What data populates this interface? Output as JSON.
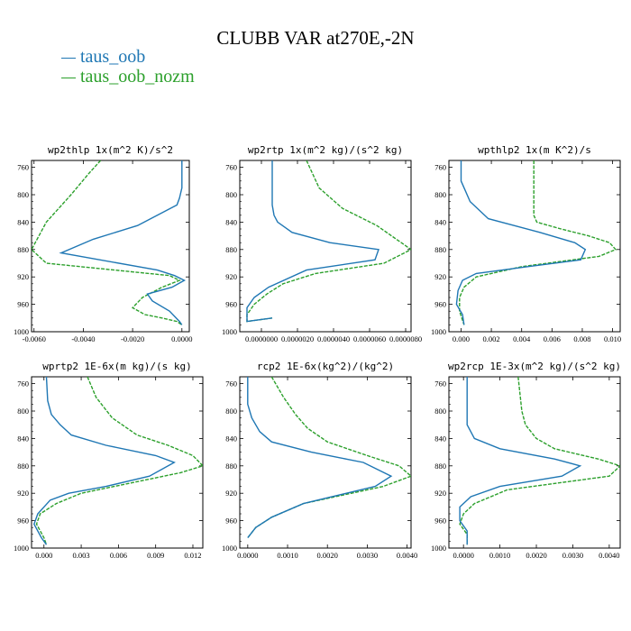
{
  "title": "CLUBB VAR at270E,-2N",
  "legend": [
    {
      "name": "taus_oob",
      "color": "#1f77b4"
    },
    {
      "name": "taus_oob_nozm",
      "color": "#2ca02c"
    }
  ],
  "chart_data": [
    {
      "type": "line",
      "title": "wp2thlp  1x(m^2 K)/s^2",
      "xlim": [
        -0.0061,
        0.0003
      ],
      "ylim": [
        1000,
        750
      ],
      "y_inverted": true,
      "xticks": [
        -0.006,
        -0.004,
        -0.002,
        0.0
      ],
      "xtick_labels": [
        "-0.0060",
        "-0.0040",
        "-0.0020",
        "0.0000"
      ],
      "yticks": [
        760,
        800,
        840,
        880,
        920,
        960,
        1000
      ],
      "series": [
        {
          "name": "taus_oob",
          "x": [
            0.0,
            0.0,
            -0.0001,
            -0.0002,
            -0.0018,
            -0.0036,
            -0.0049,
            -0.001,
            -0.0003,
            0.0001,
            -0.0004,
            -0.0014,
            -0.0012,
            -0.0005,
            -0.0001,
            0.0
          ],
          "y": [
            750,
            790,
            805,
            815,
            845,
            865,
            885,
            910,
            918,
            925,
            935,
            945,
            955,
            970,
            985,
            990
          ]
        },
        {
          "name": "taus_oob_nozm",
          "x": [
            -0.0033,
            -0.0038,
            -0.0045,
            -0.0055,
            -0.0061,
            -0.0055,
            -0.0005,
            -0.0001,
            -0.0008,
            -0.0016,
            -0.002,
            -0.0015,
            -0.0008,
            -0.0002,
            0.0
          ],
          "y": [
            750,
            770,
            800,
            840,
            880,
            900,
            918,
            925,
            935,
            950,
            965,
            975,
            980,
            985,
            990
          ]
        }
      ]
    },
    {
      "type": "line",
      "title": "wp2rtp  1x(m^2 kg)/(s^2 kg)",
      "xlim": [
        -1.2e-06,
        8.3e-06
      ],
      "ylim": [
        1000,
        750
      ],
      "y_inverted": true,
      "xticks": [
        0.0,
        2e-06,
        4e-06,
        6e-06,
        8e-06
      ],
      "xtick_labels": [
        "0.0000000",
        "0.0000020",
        "0.0000040",
        "0.0000060",
        "0.0000080"
      ],
      "yticks": [
        760,
        800,
        840,
        880,
        920,
        960,
        1000
      ],
      "series": [
        {
          "name": "taus_oob",
          "x": [
            6e-07,
            6e-07,
            6e-07,
            7e-07,
            9e-07,
            1.7e-06,
            3.8e-06,
            6.5e-06,
            6.3e-06,
            2.5e-06,
            4e-07,
            -4e-07,
            -8e-07,
            -8e-07,
            6e-07
          ],
          "y": [
            750,
            800,
            815,
            830,
            840,
            855,
            870,
            880,
            895,
            910,
            935,
            950,
            965,
            985,
            980
          ]
        },
        {
          "name": "taus_oob_nozm",
          "x": [
            2.5e-06,
            3.2e-06,
            4.5e-06,
            6.4e-06,
            8.3e-06,
            6.8e-06,
            3e-06,
            1.2e-06,
            3e-07,
            -4e-07,
            -8e-07,
            -8e-07,
            6e-07
          ],
          "y": [
            750,
            790,
            820,
            845,
            880,
            900,
            915,
            930,
            945,
            960,
            975,
            985,
            980
          ]
        }
      ]
    },
    {
      "type": "line",
      "title": "wpthlp2  1x(m K^2)/s",
      "xlim": [
        -0.0008,
        0.0105
      ],
      "ylim": [
        1000,
        750
      ],
      "y_inverted": true,
      "xticks": [
        0.0,
        0.002,
        0.004,
        0.006,
        0.008,
        0.01
      ],
      "xtick_labels": [
        "0.000",
        "0.002",
        "0.004",
        "0.006",
        "0.008",
        "0.010"
      ],
      "yticks": [
        760,
        800,
        840,
        880,
        920,
        960,
        1000
      ],
      "series": [
        {
          "name": "taus_oob",
          "x": [
            0.0,
            0.0,
            0.0003,
            0.0006,
            0.0018,
            0.0052,
            0.0075,
            0.0082,
            0.0079,
            0.0044,
            0.001,
            0.0001,
            -0.0002,
            -0.0003,
            0.0001,
            0.0002
          ],
          "y": [
            750,
            780,
            795,
            810,
            835,
            855,
            870,
            880,
            895,
            905,
            915,
            925,
            940,
            960,
            975,
            990
          ]
        },
        {
          "name": "taus_oob_nozm",
          "x": [
            0.0048,
            0.0048,
            0.0048,
            0.005,
            0.0066,
            0.0084,
            0.0098,
            0.0102,
            0.0091,
            0.004,
            0.001,
            0.0002,
            -0.0001,
            -0.0001,
            0.0002
          ],
          "y": [
            750,
            810,
            830,
            840,
            850,
            860,
            870,
            880,
            890,
            905,
            920,
            935,
            950,
            970,
            990
          ]
        }
      ]
    },
    {
      "type": "line",
      "title": "wprtp2  1E-6x(m kg)/(s kg)",
      "xlim": [
        -0.001,
        0.0128
      ],
      "ylim": [
        1000,
        750
      ],
      "y_inverted": true,
      "xticks": [
        0.0,
        0.003,
        0.006,
        0.009,
        0.012
      ],
      "xtick_labels": [
        "0.000",
        "0.003",
        "0.006",
        "0.009",
        "0.012"
      ],
      "yticks": [
        760,
        800,
        840,
        880,
        920,
        960,
        1000
      ],
      "series": [
        {
          "name": "taus_oob",
          "x": [
            0.0002,
            0.0003,
            0.0006,
            0.0013,
            0.0022,
            0.005,
            0.009,
            0.0105,
            0.0085,
            0.005,
            0.002,
            0.0005,
            -0.0005,
            -0.0008,
            -0.0002,
            0.0002
          ],
          "y": [
            750,
            785,
            805,
            820,
            835,
            850,
            865,
            875,
            895,
            910,
            920,
            930,
            950,
            965,
            985,
            995
          ]
        },
        {
          "name": "taus_oob_nozm",
          "x": [
            0.0035,
            0.0042,
            0.0055,
            0.0075,
            0.01,
            0.012,
            0.0128,
            0.011,
            0.007,
            0.003,
            0.001,
            -0.0003,
            -0.0006,
            0.0,
            0.0002
          ],
          "y": [
            750,
            780,
            810,
            835,
            850,
            865,
            880,
            890,
            905,
            920,
            935,
            950,
            965,
            985,
            995
          ]
        }
      ]
    },
    {
      "type": "line",
      "title": "rcp2  1E-6x(kg^2)/(kg^2)",
      "xlim": [
        -0.0002,
        0.0041
      ],
      "ylim": [
        1000,
        750
      ],
      "y_inverted": true,
      "xticks": [
        0.0,
        0.001,
        0.002,
        0.003,
        0.004
      ],
      "xtick_labels": [
        "0.0000",
        "0.0010",
        "0.0020",
        "0.0030",
        "0.0040"
      ],
      "yticks": [
        760,
        800,
        840,
        880,
        920,
        960,
        1000
      ],
      "series": [
        {
          "name": "taus_oob",
          "x": [
            0.0,
            0.0,
            0.0001,
            0.0003,
            0.0006,
            0.0016,
            0.0029,
            0.0036,
            0.0032,
            0.0014,
            0.0006,
            0.0002,
            0.0
          ],
          "y": [
            750,
            790,
            810,
            830,
            845,
            860,
            875,
            895,
            910,
            935,
            955,
            970,
            985
          ]
        },
        {
          "name": "taus_oob_nozm",
          "x": [
            0.0006,
            0.0009,
            0.0012,
            0.0015,
            0.002,
            0.003,
            0.0038,
            0.0041,
            0.0034,
            0.0014,
            0.0006,
            0.0002,
            0.0
          ],
          "y": [
            750,
            780,
            805,
            825,
            845,
            865,
            880,
            895,
            910,
            935,
            955,
            970,
            985
          ]
        }
      ]
    },
    {
      "type": "line",
      "title": "wp2rcp  1E-3x(m^2 kg)/(s^2 kg)",
      "xlim": [
        -0.0004,
        0.0043
      ],
      "ylim": [
        1000,
        750
      ],
      "y_inverted": true,
      "xticks": [
        0.0,
        0.001,
        0.002,
        0.003,
        0.004
      ],
      "xtick_labels": [
        "0.0000",
        "0.0010",
        "0.0020",
        "0.0030",
        "0.0040"
      ],
      "yticks": [
        760,
        800,
        840,
        880,
        920,
        960,
        1000
      ],
      "series": [
        {
          "name": "taus_oob",
          "x": [
            0.0001,
            0.0001,
            0.0001,
            0.0003,
            0.001,
            0.0025,
            0.0032,
            0.0027,
            0.001,
            0.0002,
            -0.0001,
            -0.0001,
            0.0001,
            0.0001
          ],
          "y": [
            750,
            800,
            820,
            840,
            855,
            870,
            880,
            895,
            910,
            925,
            940,
            960,
            975,
            995
          ]
        },
        {
          "name": "taus_oob_nozm",
          "x": [
            0.0015,
            0.0016,
            0.0017,
            0.002,
            0.0025,
            0.0037,
            0.0043,
            0.004,
            0.0012,
            0.0003,
            0.0,
            -0.0001,
            0.0001,
            0.0001
          ],
          "y": [
            750,
            800,
            820,
            840,
            855,
            870,
            880,
            895,
            915,
            935,
            950,
            965,
            980,
            995
          ]
        }
      ]
    }
  ]
}
